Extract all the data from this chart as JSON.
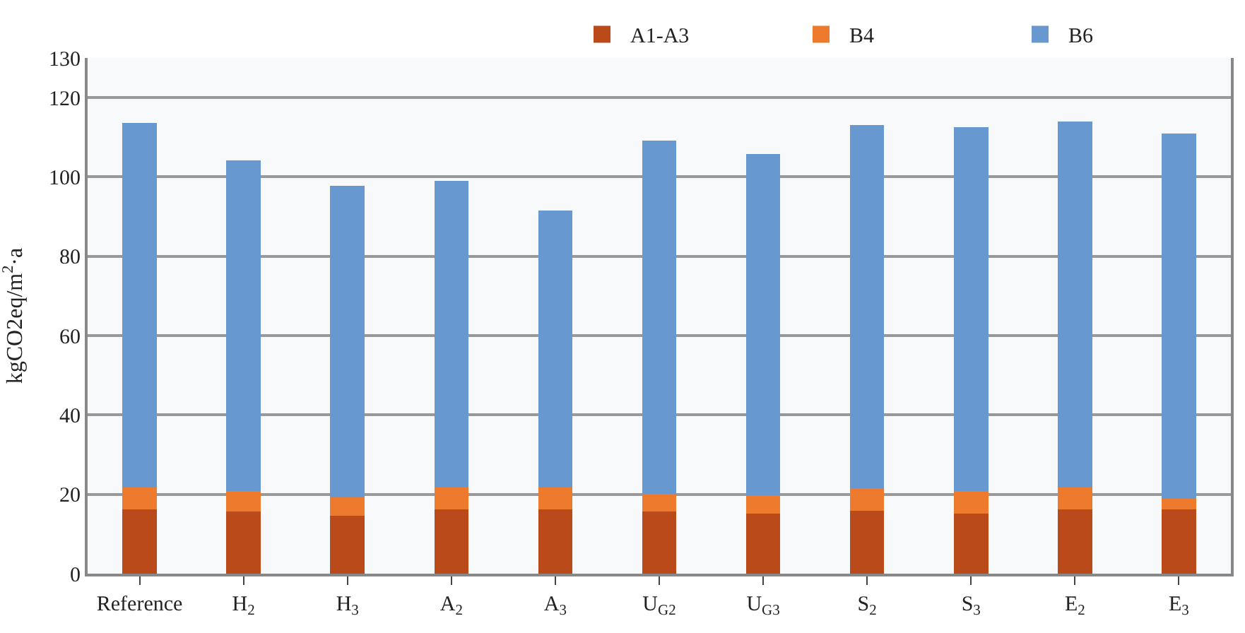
{
  "chart_data": {
    "type": "bar",
    "stacked": true,
    "ylabel": "kgCO2eq/m$^{2}$·a",
    "categories": [
      "Reference",
      "H$_{2}$",
      "H$_{3}$",
      "A$_{2}$",
      "A$_{3}$",
      "U$_{G2}$",
      "U$_{G3}$",
      "S$_{2}$",
      "S$_{3}$",
      "E$_{2}$",
      "E$_{3}$"
    ],
    "series": [
      {
        "name": "A1-A3",
        "color": "#bb4a1a",
        "values": [
          16.2,
          15.6,
          14.6,
          16.2,
          16.2,
          15.6,
          15.2,
          15.8,
          15.2,
          16.2,
          16.2
        ]
      },
      {
        "name": "B4",
        "color": "#ee7a2e",
        "values": [
          5.5,
          5.3,
          4.7,
          5.5,
          5.5,
          4.6,
          4.6,
          5.8,
          5.7,
          5.6,
          2.7
        ]
      },
      {
        "name": "B6",
        "color": "#6798d0",
        "values": [
          92.0,
          83.3,
          78.4,
          77.3,
          69.8,
          89.0,
          86.0,
          91.5,
          91.6,
          92.1,
          92.1
        ]
      }
    ],
    "ylim": [
      0,
      130
    ],
    "yticks": [
      0,
      20,
      40,
      60,
      80,
      100,
      120,
      130
    ],
    "grid": "y",
    "legend": "top right"
  }
}
